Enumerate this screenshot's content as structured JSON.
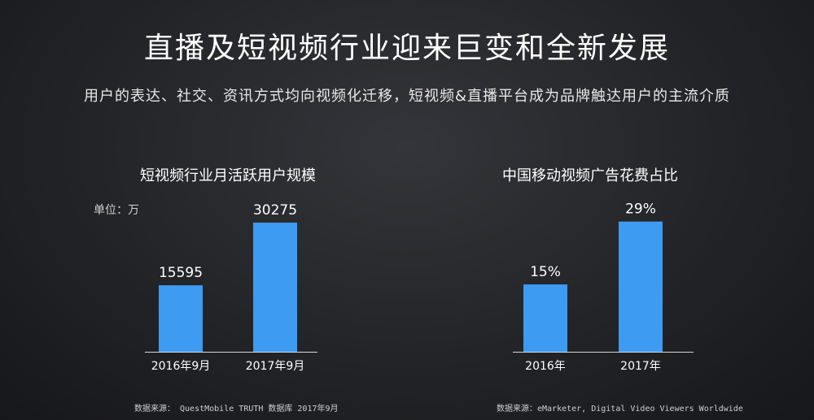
{
  "title": "直播及短视频行业迎来巨变和全新发展",
  "subtitle": "用户的表达、社交、资讯方式均向视频化迁移，短视频&直播平台成为品牌触达用户的主流介质",
  "colors": {
    "bar": "#3d9bf2",
    "axis": "#d8d8d8",
    "text": "#ffffff"
  },
  "chart_data": [
    {
      "type": "bar",
      "title": "短视频行业月活跃用户规模",
      "unit_label": "单位：万",
      "categories": [
        "2016年9月",
        "2017年9月"
      ],
      "values": [
        15595,
        30275
      ],
      "value_labels": [
        "15595",
        "30275"
      ],
      "ylim": [
        0,
        40000
      ],
      "grid": false,
      "source": "数据来源： QuestMobile TRUTH 数据库 2017年9月"
    },
    {
      "type": "bar",
      "title": "中国移动视频广告花费占比",
      "categories": [
        "2016年",
        "2017年"
      ],
      "values": [
        15,
        29
      ],
      "value_labels": [
        "15%",
        "29%"
      ],
      "ylim": [
        0,
        38
      ],
      "grid": false,
      "source": "数据来源：eMarketer, Digital Video Viewers Worldwide"
    }
  ]
}
